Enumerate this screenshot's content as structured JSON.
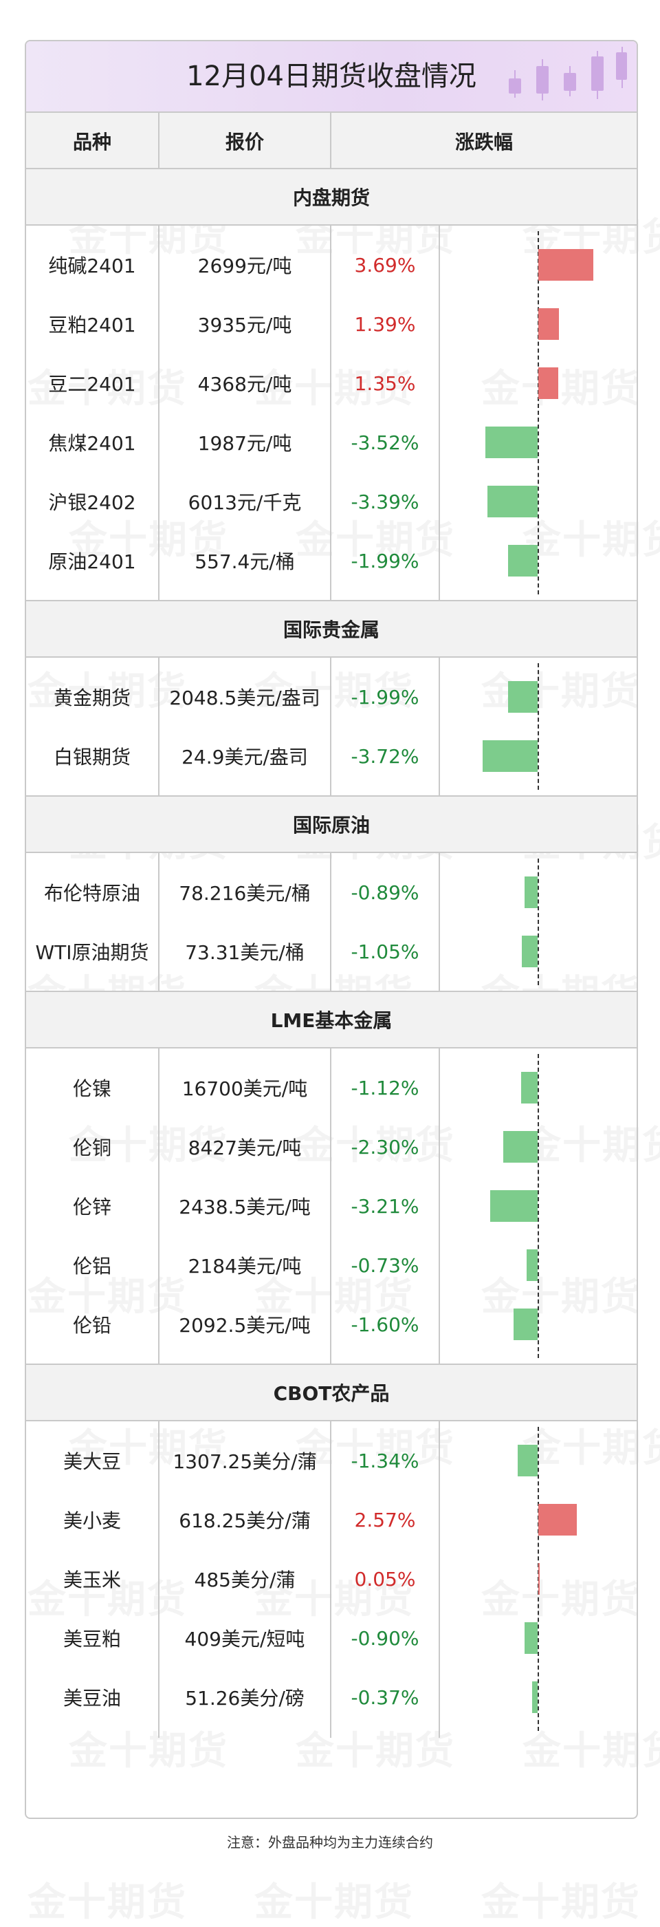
{
  "title": "12月04日期货收盘情况",
  "watermark": "金十期货",
  "columns": [
    "品种",
    "报价",
    "涨跌幅"
  ],
  "colors": {
    "up_bar": "#e77474",
    "down_bar": "#7dcc8c",
    "up_text": "#d12b2b",
    "down_text": "#1f8a3b",
    "header_bg": "#e8d7f3"
  },
  "sections": [
    {
      "name": "内盘期货",
      "rows": [
        {
          "name": "纯碱2401",
          "price": "2699元/吨",
          "change": "3.69%",
          "pct": 3.69
        },
        {
          "name": "豆粕2401",
          "price": "3935元/吨",
          "change": "1.39%",
          "pct": 1.39
        },
        {
          "name": "豆二2401",
          "price": "4368元/吨",
          "change": "1.35%",
          "pct": 1.35
        },
        {
          "name": "焦煤2401",
          "price": "1987元/吨",
          "change": "-3.52%",
          "pct": -3.52
        },
        {
          "name": "沪银2402",
          "price": "6013元/千克",
          "change": "-3.39%",
          "pct": -3.39
        },
        {
          "name": "原油2401",
          "price": "557.4元/桶",
          "change": "-1.99%",
          "pct": -1.99
        }
      ]
    },
    {
      "name": "国际贵金属",
      "rows": [
        {
          "name": "黄金期货",
          "price": "2048.5美元/盎司",
          "change": "-1.99%",
          "pct": -1.99
        },
        {
          "name": "白银期货",
          "price": "24.9美元/盎司",
          "change": "-3.72%",
          "pct": -3.72
        }
      ]
    },
    {
      "name": "国际原油",
      "rows": [
        {
          "name": "布伦特原油",
          "price": "78.216美元/桶",
          "change": "-0.89%",
          "pct": -0.89
        },
        {
          "name": "WTI原油期货",
          "price": "73.31美元/桶",
          "change": "-1.05%",
          "pct": -1.05
        }
      ]
    },
    {
      "name": "LME基本金属",
      "rows": [
        {
          "name": "伦镍",
          "price": "16700美元/吨",
          "change": "-1.12%",
          "pct": -1.12
        },
        {
          "name": "伦铜",
          "price": "8427美元/吨",
          "change": "-2.30%",
          "pct": -2.3
        },
        {
          "name": "伦锌",
          "price": "2438.5美元/吨",
          "change": "-3.21%",
          "pct": -3.21
        },
        {
          "name": "伦铝",
          "price": "2184美元/吨",
          "change": "-0.73%",
          "pct": -0.73
        },
        {
          "name": "伦铅",
          "price": "2092.5美元/吨",
          "change": "-1.60%",
          "pct": -1.6
        }
      ]
    },
    {
      "name": "CBOT农产品",
      "rows": [
        {
          "name": "美大豆",
          "price": "1307.25美分/蒲",
          "change": "-1.34%",
          "pct": -1.34
        },
        {
          "name": "美小麦",
          "price": "618.25美分/蒲",
          "change": "2.57%",
          "pct": 2.57
        },
        {
          "name": "美玉米",
          "price": "485美分/蒲",
          "change": "0.05%",
          "pct": 0.05
        },
        {
          "name": "美豆粕",
          "price": "409美元/短吨",
          "change": "-0.90%",
          "pct": -0.9
        },
        {
          "name": "美豆油",
          "price": "51.26美分/磅",
          "change": "-0.37%",
          "pct": -0.37
        }
      ]
    }
  ],
  "footer": "注意：外盘品种均为主力连续合约"
}
